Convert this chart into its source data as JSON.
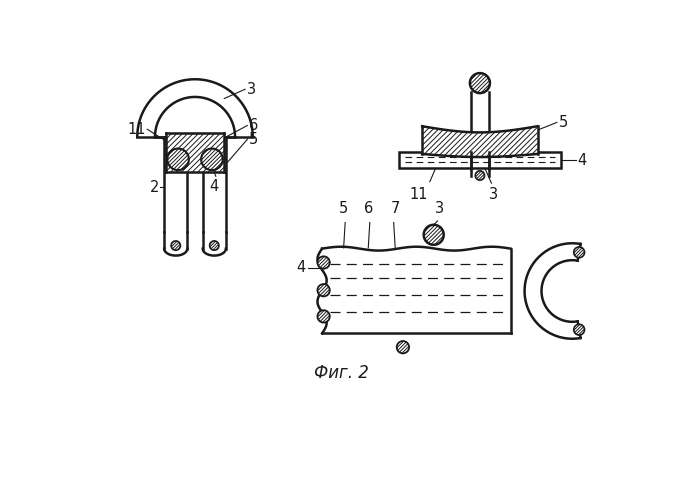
{
  "bg_color": "#ffffff",
  "line_color": "#1a1a1a",
  "fig_label": "Фиг. 2",
  "label_fontsize": 12,
  "anno_fontsize": 10.5
}
